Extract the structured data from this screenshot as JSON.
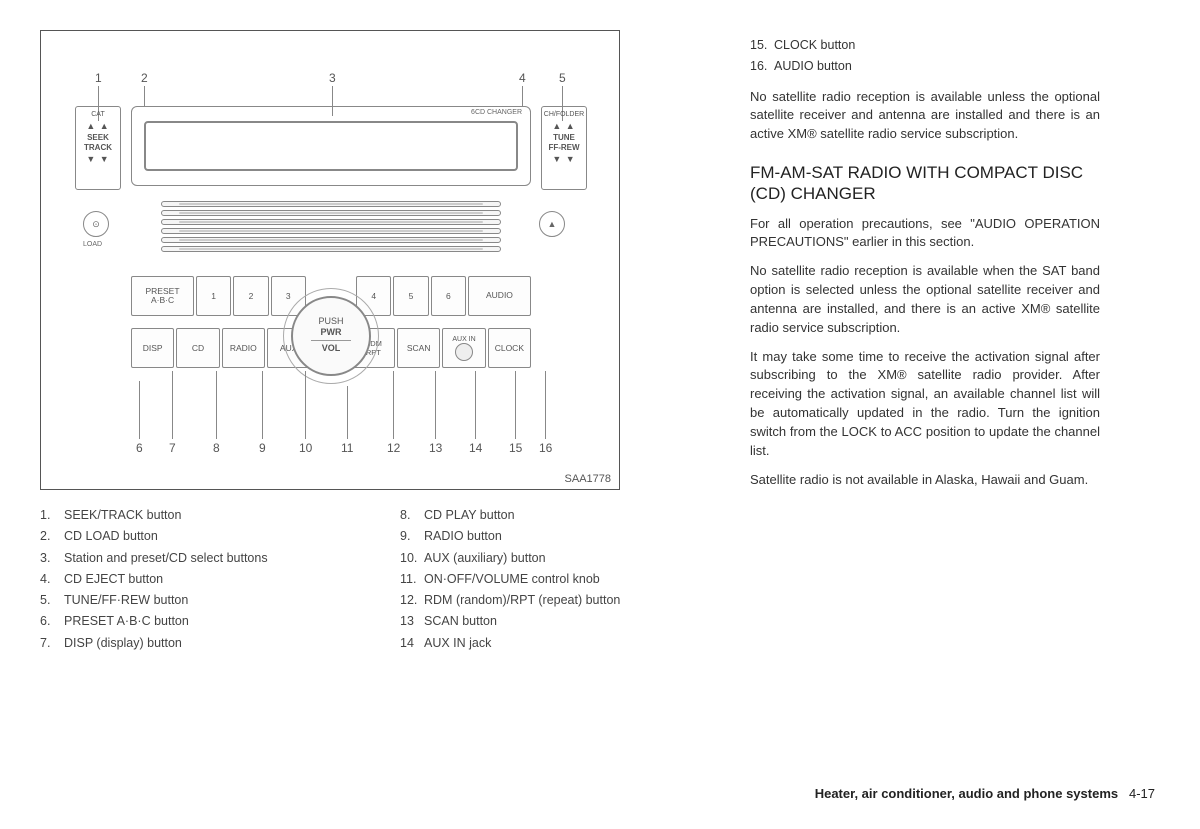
{
  "figure_id": "SAA1778",
  "diagram": {
    "display_label_left": "CAT",
    "display_label_right": "6CD CHANGER",
    "side_right_label": "CH/FOLDER",
    "side_left_title": "SEEK\nTRACK",
    "side_right_title": "TUNE\nFF-REW",
    "knob_line1": "PUSH",
    "knob_line2": "PWR",
    "knob_line3": "VOL",
    "load_label": "LOAD",
    "top_buttons": {
      "preset": "PRESET\nA·B·C",
      "n1": "1",
      "n2": "2",
      "n3": "3",
      "n4": "4",
      "n5": "5",
      "n6": "6",
      "audio": "AUDIO"
    },
    "bot_buttons": {
      "disp": "DISP",
      "cd": "CD",
      "radio": "RADIO",
      "aux": "AUX",
      "rdm": "RDM\nRPT",
      "scan": "SCAN",
      "auxin": "AUX IN",
      "clock": "CLOCK"
    },
    "callouts_top": [
      "1",
      "2",
      "3",
      "4",
      "5"
    ],
    "callouts_bot": [
      "6",
      "7",
      "8",
      "9",
      "10",
      "11",
      "12",
      "13",
      "14",
      "15",
      "16"
    ]
  },
  "list_left": [
    {
      "n": "1.",
      "t": "SEEK/TRACK button"
    },
    {
      "n": "2.",
      "t": "CD LOAD button"
    },
    {
      "n": "3.",
      "t": "Station and preset/CD select buttons"
    },
    {
      "n": "4.",
      "t": "CD EJECT button"
    },
    {
      "n": "5.",
      "t": "TUNE/FF·REW button"
    },
    {
      "n": "6.",
      "t": "PRESET A·B·C button"
    },
    {
      "n": "7.",
      "t": "DISP (display) button"
    }
  ],
  "list_right": [
    {
      "n": "8.",
      "t": "CD PLAY button"
    },
    {
      "n": "9.",
      "t": "RADIO button"
    },
    {
      "n": "10.",
      "t": "AUX (auxiliary) button"
    },
    {
      "n": "11.",
      "t": "ON·OFF/VOLUME control knob"
    },
    {
      "n": "12.",
      "t": "RDM (random)/RPT (repeat) button"
    },
    {
      "n": "13",
      "t": "SCAN button"
    },
    {
      "n": "14",
      "t": "AUX IN jack"
    }
  ],
  "list_far_right": [
    {
      "n": "15.",
      "t": "CLOCK button"
    },
    {
      "n": "16.",
      "t": "AUDIO button"
    }
  ],
  "para1": "No satellite radio reception is available unless the optional satellite receiver and antenna are installed and there is an active XM® satellite radio service subscription.",
  "heading": "FM-AM-SAT RADIO WITH COMPACT DISC (CD) CHANGER",
  "para2": "For all operation precautions, see \"AUDIO OPERATION PRECAUTIONS\" earlier in this section.",
  "para3": "No satellite radio reception is available when the SAT band option is selected unless the optional satellite receiver and antenna are installed, and there is an active XM® satellite radio service subscription.",
  "para4": "It may take some time to receive the activation signal after subscribing to the XM® satellite radio provider. After receiving the activation signal, an available channel list will be automatically updated in the radio. Turn the ignition switch from the LOCK to ACC position to update the channel list.",
  "para5": "Satellite radio is not available in Alaska, Hawaii and Guam.",
  "footer_section": "Heater, air conditioner, audio and phone systems",
  "footer_page": "4-17"
}
